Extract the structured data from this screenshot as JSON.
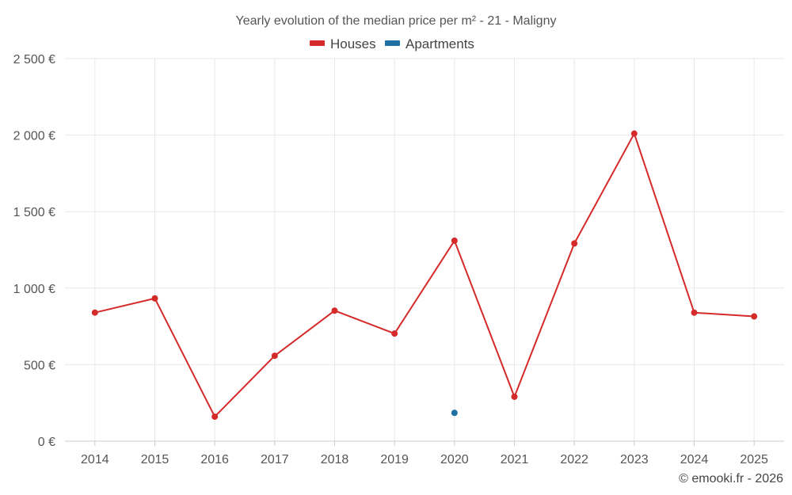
{
  "chart_data": {
    "type": "line",
    "title": "Yearly evolution of the median price per m² - 21 - Maligny",
    "categories": [
      "2014",
      "2015",
      "2016",
      "2017",
      "2018",
      "2019",
      "2020",
      "2021",
      "2022",
      "2023",
      "2024",
      "2025"
    ],
    "series": [
      {
        "name": "Houses",
        "color": "#d42a2a",
        "values": [
          840,
          933,
          160,
          558,
          853,
          703,
          1310,
          290,
          1292,
          2010,
          840,
          815
        ]
      },
      {
        "name": "Apartments",
        "color": "#1f6fa3",
        "values": [
          null,
          null,
          null,
          null,
          null,
          null,
          185,
          null,
          null,
          null,
          null,
          null
        ]
      }
    ],
    "ylim": [
      0,
      2500
    ],
    "yticks": [
      0,
      500,
      1000,
      1500,
      2000,
      2500
    ],
    "ytick_labels": [
      "0 €",
      "500 €",
      "1 000 €",
      "1 500 €",
      "2 000 €",
      "2 500 €"
    ],
    "xlabel": "",
    "ylabel": "",
    "grid": true,
    "legend_position": "top-center"
  },
  "credit": "© emooki.fr - 2026"
}
